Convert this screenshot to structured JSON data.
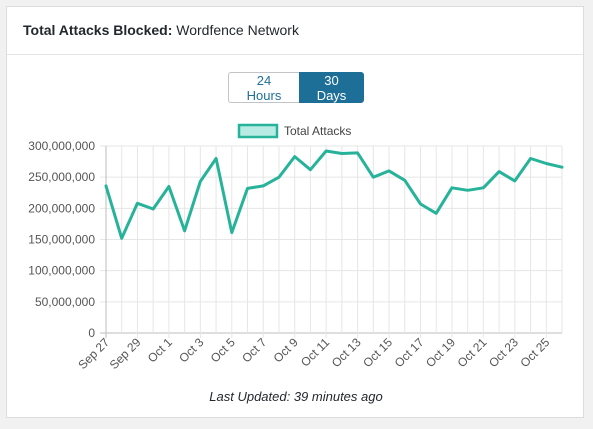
{
  "header": {
    "title_strong": "Total Attacks Blocked:",
    "title_rest": "Wordfence Network"
  },
  "toggle": {
    "options": [
      "24 Hours",
      "30 Days"
    ],
    "selected": "30 Days"
  },
  "footer": {
    "last_updated": "Last Updated: 39 minutes ago"
  },
  "colors": {
    "line": "#26b39a",
    "legend_fill": "#b8ece2",
    "grid": "#e6e6e6",
    "accent": "#1e6f98"
  },
  "chart_data": {
    "type": "line",
    "legend": "top",
    "grid": true,
    "ylim": [
      0,
      300000000
    ],
    "y_ticks": [
      0,
      50000000,
      100000000,
      150000000,
      200000000,
      250000000,
      300000000
    ],
    "y_tick_labels": [
      "0",
      "50,000,000",
      "100,000,000",
      "150,000,000",
      "200,000,000",
      "250,000,000",
      "300,000,000"
    ],
    "x_tick_labels": [
      "Sep 27",
      "Sep 29",
      "Oct 1",
      "Oct 3",
      "Oct 5",
      "Oct 7",
      "Oct 9",
      "Oct 11",
      "Oct 13",
      "Oct 15",
      "Oct 17",
      "Oct 19",
      "Oct 21",
      "Oct 23",
      "Oct 25"
    ],
    "x": [
      "Sep 27",
      "Sep 28",
      "Sep 29",
      "Sep 30",
      "Oct 1",
      "Oct 2",
      "Oct 3",
      "Oct 4",
      "Oct 5",
      "Oct 6",
      "Oct 7",
      "Oct 8",
      "Oct 9",
      "Oct 10",
      "Oct 11",
      "Oct 12",
      "Oct 13",
      "Oct 14",
      "Oct 15",
      "Oct 16",
      "Oct 17",
      "Oct 18",
      "Oct 19",
      "Oct 20",
      "Oct 21",
      "Oct 22",
      "Oct 23",
      "Oct 24",
      "Oct 25",
      "Oct 26"
    ],
    "series": [
      {
        "name": "Total Attacks",
        "values": [
          236000000,
          152000000,
          208000000,
          199000000,
          235000000,
          164000000,
          243000000,
          280000000,
          161000000,
          232000000,
          236000000,
          250000000,
          283000000,
          262000000,
          292000000,
          288000000,
          289000000,
          250000000,
          260000000,
          245000000,
          207000000,
          192000000,
          233000000,
          229000000,
          233000000,
          259000000,
          244000000,
          280000000,
          272000000,
          266000000
        ]
      }
    ]
  }
}
